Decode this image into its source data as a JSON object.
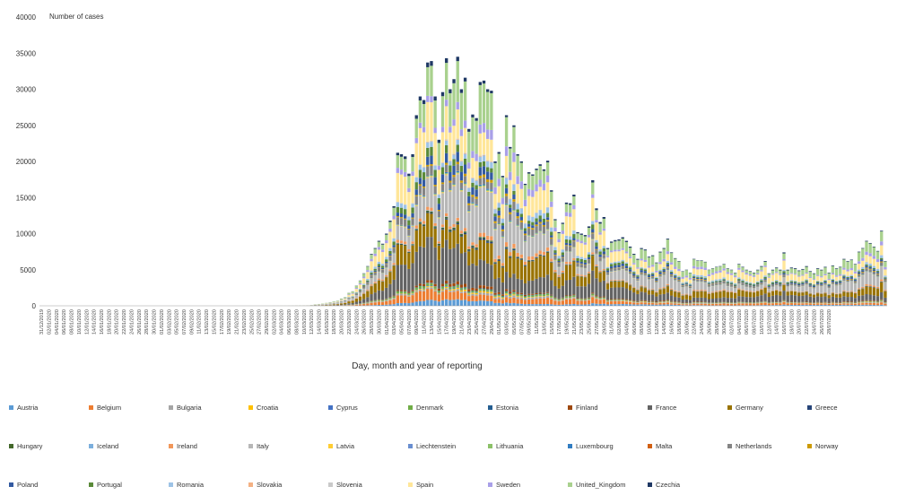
{
  "chart_data": {
    "type": "bar",
    "stacked": true,
    "title": "",
    "ylabel": "Number of cases",
    "xlabel": "Day, month and year of reporting",
    "ylim": [
      0,
      40000
    ],
    "yticks": [
      0,
      5000,
      10000,
      15000,
      20000,
      25000,
      30000,
      35000,
      40000
    ],
    "legend_position": "bottom",
    "x_tick_labels": [
      "31/12/2019",
      "02/01/2020",
      "04/01/2020",
      "06/01/2020",
      "08/01/2020",
      "10/01/2020",
      "12/01/2020",
      "14/01/2020",
      "16/01/2020",
      "18/01/2020",
      "20/01/2020",
      "22/01/2020",
      "24/01/2020",
      "26/01/2020",
      "28/01/2020",
      "30/01/2020",
      "01/02/2020",
      "03/02/2020",
      "05/02/2020",
      "07/02/2020",
      "09/02/2020",
      "11/02/2020",
      "13/02/2020",
      "15/02/2020",
      "17/02/2020",
      "19/02/2020",
      "21/02/2020",
      "23/02/2020",
      "25/02/2020",
      "27/02/2020",
      "29/02/2020",
      "02/03/2020",
      "04/03/2020",
      "06/03/2020",
      "08/03/2020",
      "10/03/2020",
      "12/03/2020",
      "14/03/2020",
      "16/03/2020",
      "18/03/2020",
      "20/03/2020",
      "22/03/2020",
      "24/03/2020",
      "26/03/2020",
      "28/03/2020",
      "30/03/2020",
      "01/04/2020",
      "03/04/2020",
      "05/04/2020",
      "07/04/2020",
      "09/04/2020",
      "11/04/2020",
      "13/04/2020",
      "15/04/2020",
      "17/04/2020",
      "19/04/2020",
      "21/04/2020",
      "23/04/2020",
      "25/04/2020",
      "27/04/2020",
      "29/04/2020",
      "01/05/2020",
      "03/05/2020",
      "05/05/2020",
      "07/05/2020",
      "09/05/2020",
      "11/05/2020",
      "13/05/2020",
      "15/05/2020",
      "17/05/2020",
      "19/05/2020",
      "21/05/2020",
      "23/05/2020",
      "25/05/2020",
      "27/05/2020",
      "29/05/2020",
      "31/05/2020",
      "02/06/2020",
      "04/06/2020",
      "06/06/2020",
      "08/06/2020",
      "10/06/2020",
      "12/06/2020",
      "14/06/2020",
      "16/06/2020",
      "18/06/2020",
      "20/06/2020",
      "22/06/2020",
      "24/06/2020",
      "26/06/2020",
      "28/06/2020",
      "30/06/2020",
      "02/07/2020",
      "04/07/2020",
      "06/07/2020",
      "08/07/2020",
      "10/07/2020",
      "12/07/2020",
      "14/07/2020",
      "16/07/2020",
      "18/07/2020",
      "20/07/2020",
      "22/07/2020",
      "24/07/2020",
      "26/07/2020",
      "28/07/2020"
    ],
    "daily_totals": [
      0,
      0,
      0,
      0,
      0,
      0,
      0,
      0,
      0,
      0,
      0,
      0,
      0,
      0,
      0,
      0,
      0,
      0,
      0,
      0,
      0,
      0,
      0,
      0,
      0,
      0,
      0,
      0,
      0,
      0,
      0,
      0,
      0,
      0,
      0,
      0,
      0,
      0,
      0,
      0,
      0,
      0,
      0,
      0,
      0,
      0,
      0,
      0,
      0,
      0,
      0,
      0,
      0,
      0,
      0,
      0,
      0,
      0,
      0,
      0,
      0,
      0,
      5,
      8,
      10,
      12,
      15,
      20,
      25,
      30,
      40,
      60,
      100,
      200,
      250,
      300,
      400,
      500,
      600,
      700,
      1000,
      1200,
      1800,
      2000,
      2800,
      3500,
      4500,
      5500,
      7200,
      8000,
      9000,
      8600,
      10000,
      11800,
      13800,
      21200,
      21000,
      20700,
      18300,
      21000,
      26400,
      29000,
      28500,
      33700,
      33900,
      29000,
      23000,
      29600,
      34300,
      30000,
      31400,
      34500,
      30000,
      31600,
      24500,
      26500,
      26000,
      31000,
      31200,
      30000,
      29800,
      20000,
      21300,
      18000,
      26400,
      22000,
      25000,
      21000,
      20000,
      16900,
      18500,
      18200,
      19000,
      19600,
      18900,
      20100,
      16000,
      12000,
      10200,
      11500,
      14300,
      14200,
      15400,
      10200,
      10000,
      9800,
      11000,
      17400,
      13500,
      11600,
      12300,
      8000,
      8900,
      9100,
      9200,
      9500,
      9000,
      8200,
      7200,
      6500,
      8000,
      7800,
      6800,
      7000,
      6000,
      7500,
      8000,
      9300,
      7400,
      6600,
      6200,
      4800,
      5000,
      4600,
      6500,
      6300,
      6300,
      6100,
      5000,
      5200,
      5400,
      5500,
      5800,
      5200,
      5000,
      4600,
      5800,
      5400,
      5000,
      4800,
      4600,
      5000,
      5500,
      6200,
      4500,
      5000,
      5300,
      5000,
      7400,
      5000,
      5300,
      5200,
      4900,
      5100,
      5500,
      4800,
      4500,
      5200,
      5000,
      5400,
      4600,
      5600,
      5200,
      5400,
      6500,
      6200,
      6400,
      5800,
      7500,
      8000,
      9000,
      8700,
      8200,
      7600,
      10400,
      6200
    ],
    "series": [
      {
        "name": "Austria",
        "color": "#5b9bd5",
        "share": 0.02
      },
      {
        "name": "Belgium",
        "color": "#ed7d31",
        "share": 0.04
      },
      {
        "name": "Bulgaria",
        "color": "#a5a5a5",
        "share": 0.01
      },
      {
        "name": "Croatia",
        "color": "#ffc000",
        "share": 0.005
      },
      {
        "name": "Cyprus",
        "color": "#4472c4",
        "share": 0.002
      },
      {
        "name": "Denmark",
        "color": "#70ad47",
        "share": 0.01
      },
      {
        "name": "Estonia",
        "color": "#255e91",
        "share": 0.003
      },
      {
        "name": "Finland",
        "color": "#9e480e",
        "share": 0.01
      },
      {
        "name": "France",
        "color": "#636363",
        "share": 0.14
      },
      {
        "name": "Germany",
        "color": "#997300",
        "share": 0.12
      },
      {
        "name": "Greece",
        "color": "#264478",
        "share": 0.005
      },
      {
        "name": "Hungary",
        "color": "#43682b",
        "share": 0.005
      },
      {
        "name": "Iceland",
        "color": "#7cafdd",
        "share": 0.002
      },
      {
        "name": "Ireland",
        "color": "#f1975a",
        "share": 0.02
      },
      {
        "name": "Italy",
        "color": "#b7b7b7",
        "share": 0.15
      },
      {
        "name": "Latvia",
        "color": "#ffcd33",
        "share": 0.003
      },
      {
        "name": "Liechtenstein",
        "color": "#698ed0",
        "share": 0.001
      },
      {
        "name": "Lithuania",
        "color": "#8cc168",
        "share": 0.004
      },
      {
        "name": "Luxembourg",
        "color": "#327dc2",
        "share": 0.004
      },
      {
        "name": "Malta",
        "color": "#d26012",
        "share": 0.001
      },
      {
        "name": "Netherlands",
        "color": "#848484",
        "share": 0.04
      },
      {
        "name": "Norway",
        "color": "#cc9a00",
        "share": 0.01
      },
      {
        "name": "Poland",
        "color": "#335aa1",
        "share": 0.03
      },
      {
        "name": "Portugal",
        "color": "#5a8a39",
        "share": 0.03
      },
      {
        "name": "Romania",
        "color": "#9dc3e6",
        "share": 0.03
      },
      {
        "name": "Slovakia",
        "color": "#f4b183",
        "share": 0.002
      },
      {
        "name": "Slovenia",
        "color": "#c9c9c9",
        "share": 0.002
      },
      {
        "name": "Spain",
        "color": "#ffe699",
        "share": 0.15
      },
      {
        "name": "Sweden",
        "color": "#a9a0e8",
        "share": 0.04
      },
      {
        "name": "United_Kingdom",
        "color": "#a9d18e",
        "share": 0.13
      },
      {
        "name": "Czechia",
        "color": "#1f3864",
        "share": 0.015
      }
    ]
  }
}
